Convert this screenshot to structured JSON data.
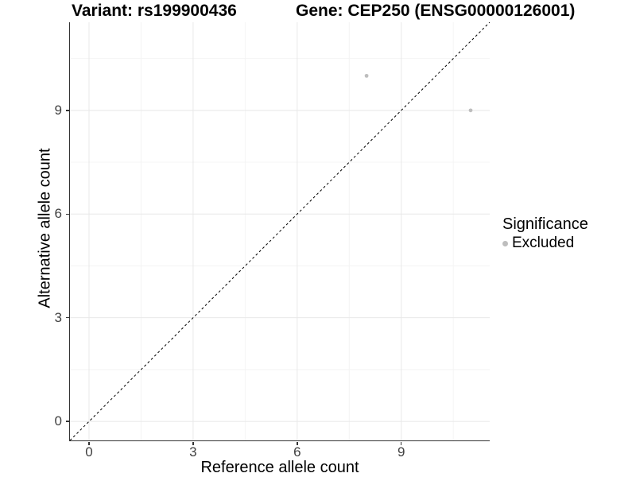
{
  "chart_data": {
    "type": "scatter",
    "title_left": "Variant: rs199900436",
    "title_right": "Gene: CEP250 (ENSG00000126001)",
    "xlabel": "Reference allele count",
    "ylabel": "Alternative allele count",
    "xlim": [
      -0.55,
      11.55
    ],
    "ylim": [
      -0.55,
      11.55
    ],
    "x_ticks": [
      0,
      3,
      6,
      9
    ],
    "y_ticks": [
      0,
      3,
      6,
      9
    ],
    "x_minor_ticks": [
      1.5,
      4.5,
      7.5,
      10.5
    ],
    "y_minor_ticks": [
      1.5,
      4.5,
      7.5,
      10.5
    ],
    "grid": true,
    "identity_line": {
      "style": "dashed",
      "color": "#000000",
      "from": -0.55,
      "to": 11.55
    },
    "series": [
      {
        "name": "Excluded",
        "color": "#bebebe",
        "point_radius": 2.4,
        "points": [
          {
            "x": 8,
            "y": 10
          },
          {
            "x": 11,
            "y": 9
          }
        ]
      }
    ],
    "legend": {
      "title": "Significance",
      "position": "right",
      "entries": [
        {
          "label": "Excluded",
          "color": "#bebebe"
        }
      ]
    }
  },
  "colors": {
    "background": "#ffffff",
    "grid_major": "#e8e8e8",
    "grid_minor": "#f4f4f4",
    "axis_line": "#333333",
    "tick_text": "#404040",
    "title_text": "#000000"
  }
}
